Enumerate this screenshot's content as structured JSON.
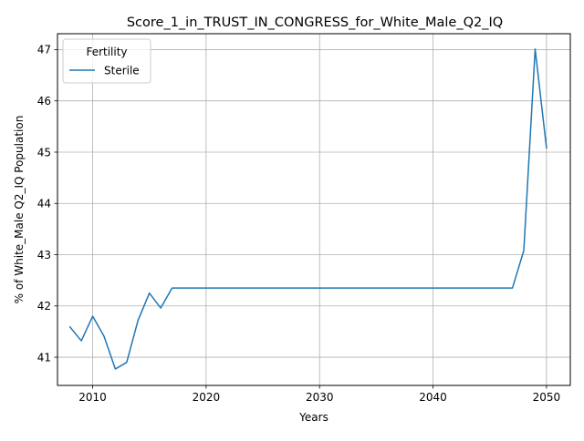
{
  "chart_data": {
    "type": "line",
    "title": "Score_1_in_TRUST_IN_CONGRESS_for_White_Male_Q2_IQ",
    "xlabel": "Years",
    "ylabel": "% of White_Male Q2_IQ Population",
    "xlim": [
      2006.9,
      2052.1
    ],
    "ylim": [
      40.45,
      47.31
    ],
    "xticks": [
      2010,
      2020,
      2030,
      2040,
      2050
    ],
    "yticks": [
      41,
      42,
      43,
      44,
      45,
      46,
      47
    ],
    "grid": true,
    "legend": {
      "title": "Fertility",
      "position": "top-left"
    },
    "series": [
      {
        "name": "Sterile",
        "color": "#1f77b4",
        "x": [
          2008,
          2009,
          2010,
          2011,
          2012,
          2013,
          2014,
          2015,
          2016,
          2017,
          2018,
          2019,
          2020,
          2021,
          2022,
          2023,
          2024,
          2025,
          2026,
          2027,
          2028,
          2029,
          2030,
          2031,
          2032,
          2033,
          2034,
          2035,
          2036,
          2037,
          2038,
          2039,
          2040,
          2041,
          2042,
          2043,
          2044,
          2045,
          2046,
          2047,
          2048,
          2049,
          2050
        ],
        "y": [
          41.59,
          41.32,
          41.8,
          41.41,
          40.77,
          40.9,
          41.72,
          42.25,
          41.96,
          42.35,
          42.35,
          42.35,
          42.35,
          42.35,
          42.35,
          42.35,
          42.35,
          42.35,
          42.35,
          42.35,
          42.35,
          42.35,
          42.35,
          42.35,
          42.35,
          42.35,
          42.35,
          42.35,
          42.35,
          42.35,
          42.35,
          42.35,
          42.35,
          42.35,
          42.35,
          42.35,
          42.35,
          42.35,
          42.35,
          42.35,
          43.08,
          47.01,
          45.08
        ]
      }
    ]
  }
}
